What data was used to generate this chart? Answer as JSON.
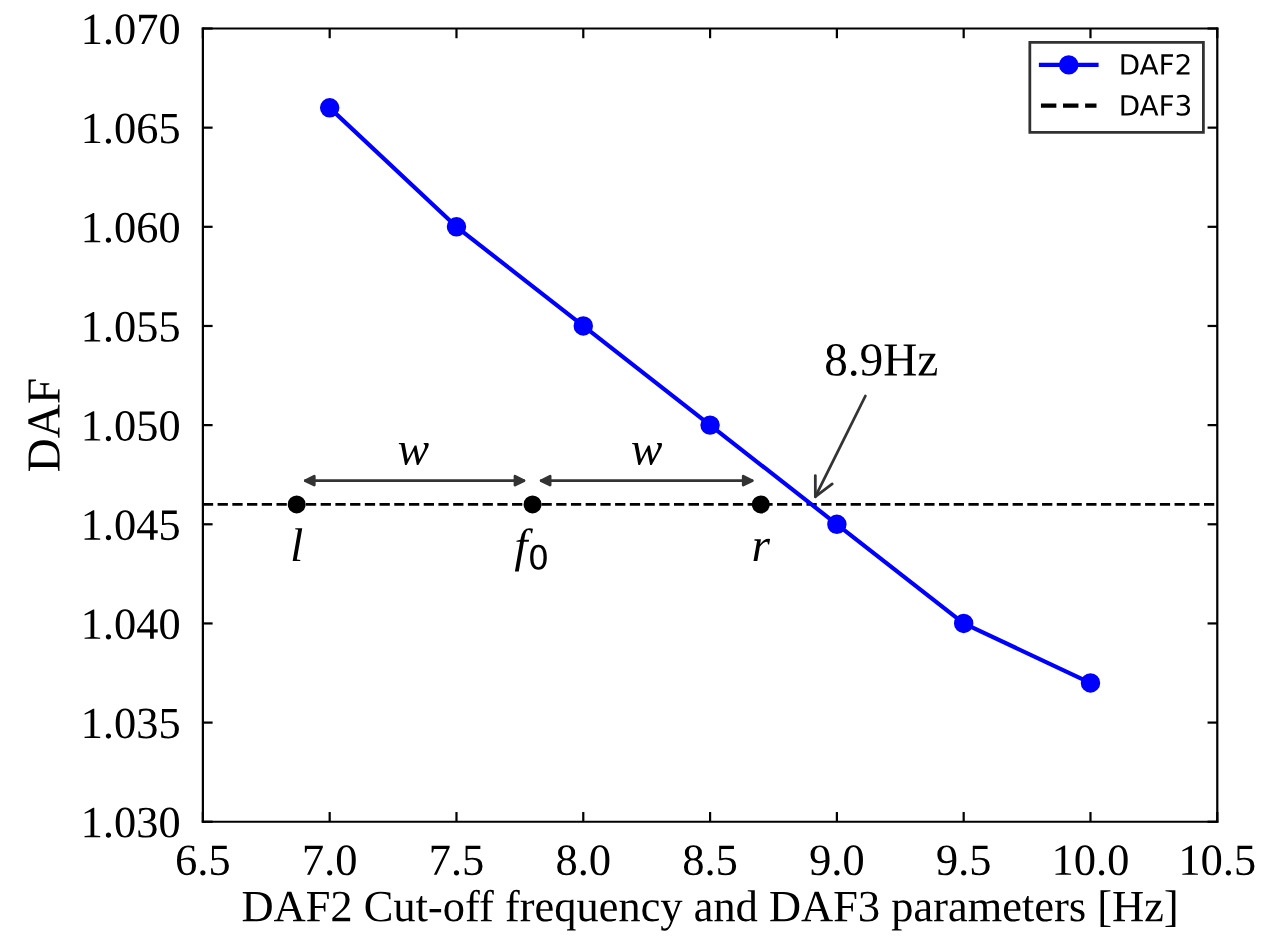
{
  "chart_data": {
    "type": "line",
    "xlabel": "DAF2 Cut-off frequency and DAF3 parameters [Hz]",
    "ylabel": "DAF",
    "xlim": [
      6.5,
      10.5
    ],
    "xticks": [
      6.5,
      {
        "value": 7,
        "label": "7.0"
      },
      7.5,
      {
        "value": 8,
        "label": "8.0"
      },
      8.5,
      {
        "value": 9,
        "label": "9.0"
      },
      9.5,
      {
        "value": 10,
        "label": "10.0"
      },
      10.5
    ],
    "ylim": [
      1.03,
      1.07
    ],
    "yticks": [
      {
        "value": 1.03,
        "label": "1.030"
      },
      {
        "value": 1.035,
        "label": "1.035"
      },
      {
        "value": 1.04,
        "label": "1.040"
      },
      {
        "value": 1.045,
        "label": "1.045"
      },
      {
        "value": 1.05,
        "label": "1.050"
      },
      {
        "value": 1.055,
        "label": "1.055"
      },
      {
        "value": 1.06,
        "label": "1.060"
      },
      {
        "value": 1.065,
        "label": "1.065"
      },
      {
        "value": 1.07,
        "label": "1.070"
      }
    ],
    "series": [
      {
        "name": "DAF2",
        "color": "#0000ff",
        "marker": "circle",
        "line_style": "solid",
        "x": [
          7.0,
          7.5,
          8.0,
          8.5,
          9.0,
          9.5,
          10.0
        ],
        "values": [
          1.066,
          1.06,
          1.055,
          1.05,
          1.045,
          1.04,
          1.037
        ]
      },
      {
        "type": "scatter",
        "color": "#000000",
        "marker": "circle",
        "x": [
          6.87,
          7.8,
          8.7
        ],
        "values": [
          1.046,
          1.046,
          1.046
        ]
      }
    ],
    "ref_lines": [
      {
        "axis": "y",
        "value": 1.046,
        "label": "DAF3",
        "color": "#000000",
        "line_style": "dashed"
      }
    ],
    "annotations": [
      {
        "text": "l",
        "x": 6.87,
        "y": 1.046
      },
      {
        "text": "f$_{0}$",
        "x": 7.8,
        "y": 1.046
      },
      {
        "text": "r",
        "x": 8.7,
        "y": 1.046
      },
      {
        "text": "w",
        "x": 7.33,
        "y": 1.046
      },
      {
        "text": "w",
        "x": 8.25,
        "y": 1.046
      },
      {
        "text": "8.9Hz",
        "x": 8.9,
        "y": 1.046
      }
    ],
    "legend": "top right",
    "grid": false
  }
}
